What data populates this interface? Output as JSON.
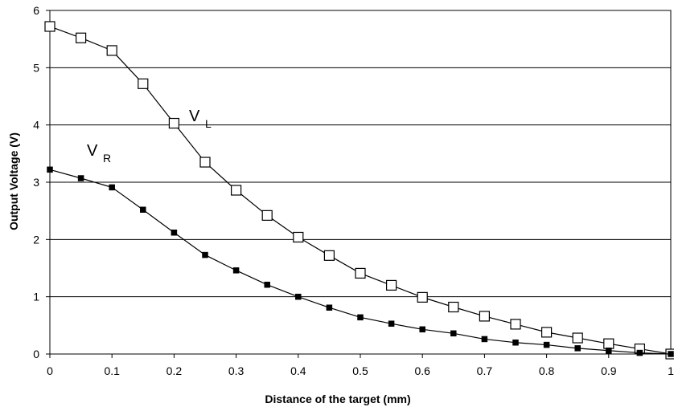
{
  "chart_data": {
    "type": "line",
    "title": "",
    "xlabel": "Distance of the target (mm)",
    "ylabel": "Output Voltage (V)",
    "xlim": [
      0,
      1
    ],
    "ylim": [
      0,
      6
    ],
    "x_ticks": [
      "0",
      "0.1",
      "0.2",
      "0.3",
      "0.4",
      "0.5",
      "0.6",
      "0.7",
      "0.8",
      "0.9",
      "1"
    ],
    "y_ticks": [
      "0",
      "1",
      "2",
      "3",
      "4",
      "5",
      "6"
    ],
    "grid": "horizontal",
    "x": [
      0,
      0.05,
      0.1,
      0.15,
      0.2,
      0.25,
      0.3,
      0.35,
      0.4,
      0.45,
      0.5,
      0.55,
      0.6,
      0.65,
      0.7,
      0.75,
      0.8,
      0.85,
      0.9,
      0.95,
      1.0
    ],
    "series": [
      {
        "label_main": "V",
        "label_sub": "L",
        "marker": "hollow-square",
        "values": [
          5.72,
          5.52,
          5.3,
          4.72,
          4.03,
          3.35,
          2.86,
          2.42,
          2.04,
          1.72,
          1.41,
          1.2,
          0.99,
          0.82,
          0.66,
          0.52,
          0.38,
          0.28,
          0.18,
          0.09,
          0.0
        ]
      },
      {
        "label_main": "V",
        "label_sub": "R",
        "marker": "filled-square",
        "values": [
          3.22,
          3.07,
          2.91,
          2.52,
          2.12,
          1.73,
          1.46,
          1.21,
          1.0,
          0.81,
          0.64,
          0.53,
          0.43,
          0.36,
          0.26,
          0.2,
          0.16,
          0.1,
          0.06,
          0.02,
          0.0
        ]
      }
    ]
  }
}
